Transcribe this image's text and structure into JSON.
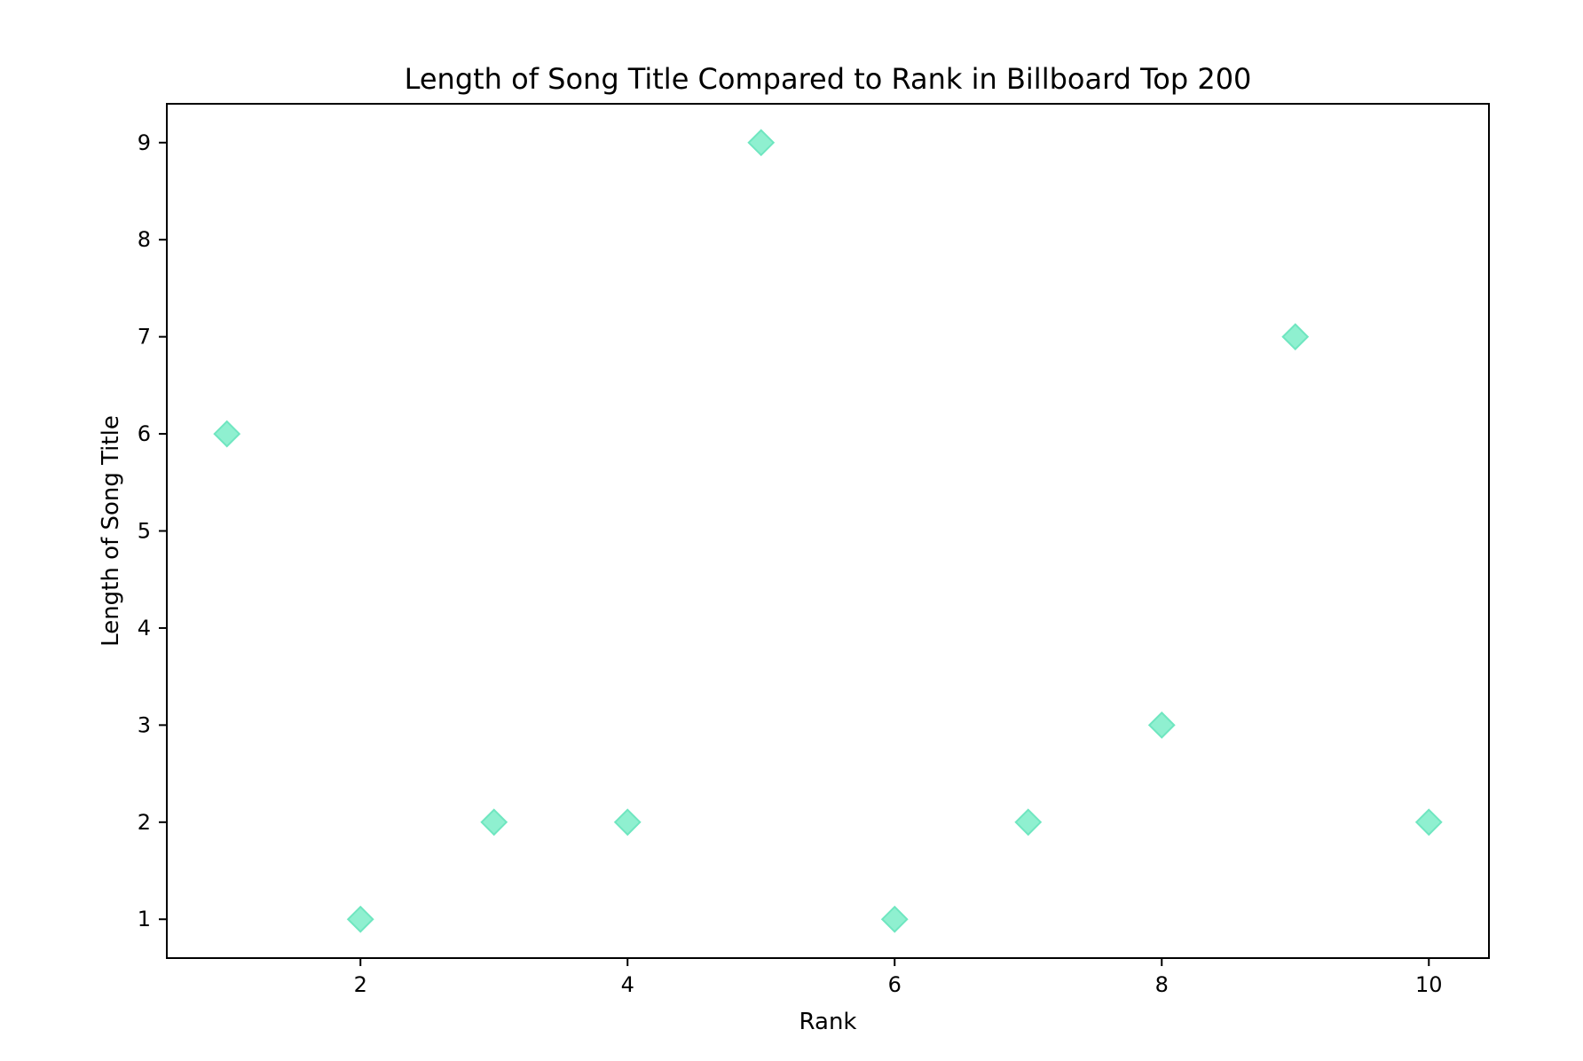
{
  "chart_data": {
    "type": "scatter",
    "title": "Length of Song Title Compared to Rank in Billboard Top 200",
    "xlabel": "Rank",
    "ylabel": "Length of Song Title",
    "xlim": [
      0.55,
      10.45
    ],
    "ylim": [
      0.6,
      9.4
    ],
    "xticks": [
      2,
      4,
      6,
      8,
      10
    ],
    "yticks": [
      1,
      2,
      3,
      4,
      5,
      6,
      7,
      8,
      9
    ],
    "grid": false,
    "marker": "diamond",
    "color": "#8ff0d0",
    "edge_color": "#6fe6c0",
    "points": [
      {
        "x": 1,
        "y": 6
      },
      {
        "x": 2,
        "y": 1
      },
      {
        "x": 3,
        "y": 2
      },
      {
        "x": 4,
        "y": 2
      },
      {
        "x": 5,
        "y": 9
      },
      {
        "x": 6,
        "y": 1
      },
      {
        "x": 7,
        "y": 2
      },
      {
        "x": 8,
        "y": 3
      },
      {
        "x": 9,
        "y": 7
      },
      {
        "x": 10,
        "y": 2
      }
    ]
  }
}
